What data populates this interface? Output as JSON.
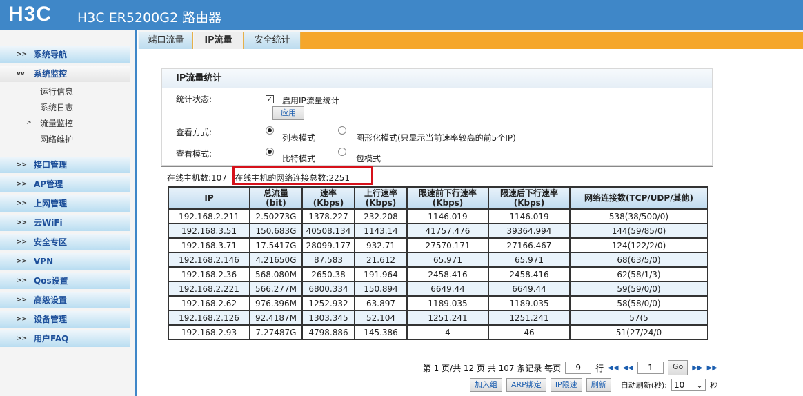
{
  "header": {
    "logo": "H3C",
    "title": "H3C ER5200G2 路由器",
    "color": "#3f87c8"
  },
  "sidebar": {
    "items": [
      {
        "label": "系统导航"
      },
      {
        "label": "系统监控",
        "expanded": true,
        "children": [
          "运行信息",
          "系统日志",
          "流量监控",
          "网络维护"
        ],
        "active_child": "流量监控"
      },
      {
        "label": "接口管理"
      },
      {
        "label": "AP管理"
      },
      {
        "label": "上网管理"
      },
      {
        "label": "云WiFi"
      },
      {
        "label": "安全专区"
      },
      {
        "label": "VPN"
      },
      {
        "label": "Qos设置"
      },
      {
        "label": "高级设置"
      },
      {
        "label": "设备管理"
      },
      {
        "label": "用户FAQ"
      }
    ]
  },
  "tabs": [
    {
      "label": "端口流量"
    },
    {
      "label": "IP流量",
      "active": true
    },
    {
      "label": "安全统计"
    }
  ],
  "panel": {
    "title": "IP流量统计",
    "status_label": "统计状态:",
    "enable_label": "启用IP流量统计",
    "enable_checked": true,
    "apply": "应用",
    "view_label": "查看方式:",
    "view_list": "列表模式",
    "view_graph": "图形化模式(只显示当前速率较高的前5个IP)",
    "view_selected": "列表模式",
    "mode_label": "查看模式:",
    "mode_bit": "比特模式",
    "mode_packet": "包模式",
    "mode_selected": "比特模式"
  },
  "stats": {
    "online_hosts": "在线主机数:107",
    "connections": "在线主机的网络连接总数:2251"
  },
  "table": {
    "headers": [
      [
        "IP",
        ""
      ],
      [
        "总流量",
        "(bit)"
      ],
      [
        "速率",
        "(Kbps)"
      ],
      [
        "上行速率",
        "(Kbps)"
      ],
      [
        "限速前下行速率",
        "(Kbps)"
      ],
      [
        "限速后下行速率",
        "(Kbps)"
      ],
      [
        "网络连接数(TCP/UDP/其他)",
        ""
      ]
    ],
    "rows": [
      [
        "192.168.2.211",
        "2.50273G",
        "1378.227",
        "232.208",
        "1146.019",
        "1146.019",
        "538(38/500/0)"
      ],
      [
        "192.168.3.51",
        "150.683G",
        "40508.134",
        "1143.14",
        "41757.476",
        "39364.994",
        "144(59/85/0)"
      ],
      [
        "192.168.3.71",
        "17.5417G",
        "28099.177",
        "932.71",
        "27570.171",
        "27166.467",
        "124(122/2/0)"
      ],
      [
        "192.168.2.146",
        "4.21650G",
        "87.583",
        "21.612",
        "65.971",
        "65.971",
        "68(63/5/0)"
      ],
      [
        "192.168.2.36",
        "568.080M",
        "2650.38",
        "191.964",
        "2458.416",
        "2458.416",
        "62(58/1/3)"
      ],
      [
        "192.168.2.221",
        "566.277M",
        "6800.334",
        "150.894",
        "6649.44",
        "6649.44",
        "59(59/0/0)"
      ],
      [
        "192.168.2.62",
        "976.396M",
        "1252.932",
        "63.897",
        "1189.035",
        "1189.035",
        "58(58/0/0)"
      ],
      [
        "192.168.2.126",
        "92.4187M",
        "1303.345",
        "52.104",
        "1251.241",
        "1251.241",
        "57(5"
      ],
      [
        "192.168.2.93",
        "7.27487G",
        "4798.886",
        "145.386",
        "4",
        "46",
        "51(27/24/0"
      ]
    ]
  },
  "pager": {
    "text_page": "第 1 页/共 12 页 共 107 条记录 每页",
    "per_page": "9",
    "rows_label": "行",
    "page_input": "1",
    "go": "Go",
    "buttons": [
      "加入组",
      "ARP绑定",
      "IP限速",
      "刷新"
    ],
    "auto_refresh_label": "自动刷新(秒):",
    "auto_refresh_value": "10",
    "seconds": "秒"
  }
}
